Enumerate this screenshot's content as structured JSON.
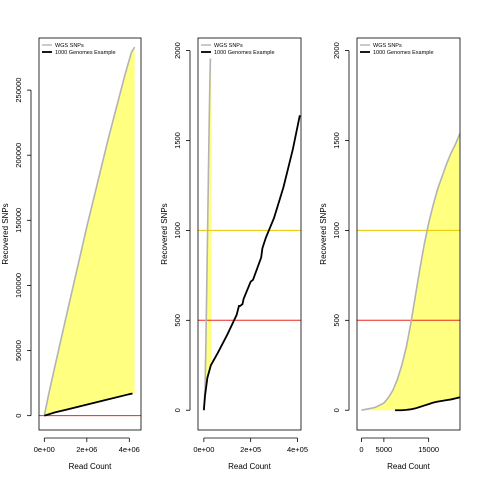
{
  "chart_data": [
    {
      "type": "area",
      "xlabel": "Read Count",
      "ylabel": "Recovered SNPs",
      "xlim": [
        -250000,
        4550000
      ],
      "ylim": [
        -11000,
        290000
      ],
      "x_ticks": [
        {
          "v": 0,
          "label": "0e+00"
        },
        {
          "v": 2000000,
          "label": "2e+06"
        },
        {
          "v": 4000000,
          "label": "4e+06"
        }
      ],
      "y_ticks": [
        {
          "v": 0,
          "label": "0"
        },
        {
          "v": 50000,
          "label": "50000"
        },
        {
          "v": 100000,
          "label": "100000"
        },
        {
          "v": 150000,
          "label": "150000"
        },
        {
          "v": 200000,
          "label": "200000"
        },
        {
          "v": 250000,
          "label": "250000"
        }
      ],
      "legend": {
        "position": "top-left",
        "entries": [
          "WGS SNPs",
          "1000 Genomes Example"
        ]
      },
      "hlines": [
        {
          "y": 0,
          "color": "#e8281e"
        }
      ],
      "series": [
        {
          "name": "WGS SNPs",
          "color": "#b3b3b3",
          "fill": "#ffff80",
          "x": [
            0,
            200000,
            500000,
            1000000,
            2000000,
            3000000,
            3800000,
            4100000,
            4250000
          ],
          "y": [
            0,
            16000,
            38000,
            74000,
            145000,
            212000,
            262000,
            279000,
            283000
          ]
        },
        {
          "name": "1000 Genomes Example",
          "color": "#000000",
          "x": [
            0,
            500000,
            1000000,
            2000000,
            3000000,
            4000000,
            4150000
          ],
          "y": [
            0,
            2500,
            4500,
            8500,
            12500,
            16500,
            17000
          ]
        }
      ]
    },
    {
      "type": "area",
      "xlabel": "",
      "ylabel": "Recovered SNPs",
      "xlim": [
        -25000,
        415000
      ],
      "ylim": [
        -110,
        2070
      ],
      "x_ticks": [
        {
          "v": 0,
          "label": "0e+00"
        },
        {
          "v": 200000,
          "label": "2e+05"
        },
        {
          "v": 400000,
          "label": "4e+05"
        }
      ],
      "y_ticks": [
        {
          "v": 0,
          "label": "0"
        },
        {
          "v": 500,
          "label": "500"
        },
        {
          "v": 1000,
          "label": "1000"
        },
        {
          "v": 1500,
          "label": "1500"
        },
        {
          "v": 2000,
          "label": "2000"
        }
      ],
      "legend": {
        "position": "top-left",
        "entries": [
          "WGS SNPs",
          "1000 Genomes Example"
        ]
      },
      "hlines": [
        {
          "y": 500,
          "color": "#e8281e"
        },
        {
          "y": 1000,
          "color": "#e6c800"
        }
      ],
      "series": [
        {
          "name": "WGS SNPs",
          "color": "#b3b3b3",
          "fill": "#ffff80",
          "x": [
            0,
            5000,
            8000,
            12000,
            16000,
            21000,
            26000,
            30000,
            32000
          ],
          "y": [
            0,
            120,
            320,
            650,
            1000,
            1450,
            1850,
            2070,
            2200
          ]
        },
        {
          "name": "1000 Genomes Example",
          "color": "#000000",
          "x": [
            0,
            5000,
            15000,
            30000,
            60000,
            100000,
            120000,
            140000,
            150000,
            155000,
            165000,
            170000,
            200000,
            210000,
            245000,
            250000,
            265000,
            300000,
            340000,
            380000,
            410000
          ],
          "y": [
            0,
            80,
            180,
            250,
            320,
            420,
            475,
            530,
            580,
            580,
            590,
            620,
            715,
            725,
            850,
            900,
            960,
            1070,
            1240,
            1450,
            1640
          ]
        }
      ]
    },
    {
      "type": "area",
      "xlabel": "",
      "ylabel": "Recovered SNPs",
      "xlim": [
        -1000,
        22000
      ],
      "ylim": [
        -110,
        2070
      ],
      "x_ticks": [
        {
          "v": 0,
          "label": "0"
        },
        {
          "v": 5000,
          "label": "5000"
        },
        {
          "v": 15000,
          "label": "15000"
        }
      ],
      "y_ticks": [
        {
          "v": 0,
          "label": "0"
        },
        {
          "v": 500,
          "label": "500"
        },
        {
          "v": 1000,
          "label": "1000"
        },
        {
          "v": 1500,
          "label": "1500"
        },
        {
          "v": 2000,
          "label": "2000"
        }
      ],
      "legend": {
        "position": "top-left",
        "entries": [
          "WGS SNPs",
          "1000 Genomes Example"
        ]
      },
      "hlines": [
        {
          "y": 500,
          "color": "#e8281e"
        },
        {
          "y": 1000,
          "color": "#e6c800"
        }
      ],
      "series": [
        {
          "name": "WGS SNPs",
          "color": "#b3b3b3",
          "fill": "#ffff80",
          "x": [
            0,
            3000,
            5000,
            6000,
            7000,
            8000,
            9000,
            10000,
            11000,
            12000,
            13000,
            14000,
            15000,
            16000,
            17000,
            18000,
            19000,
            20000,
            21000,
            22000
          ],
          "y": [
            0,
            15,
            40,
            70,
            110,
            170,
            250,
            350,
            480,
            630,
            780,
            920,
            1040,
            1140,
            1230,
            1300,
            1370,
            1430,
            1480,
            1540
          ]
        },
        {
          "name": "1000 Genomes Example",
          "color": "#000000",
          "x": [
            7500,
            9000,
            10000,
            11000,
            12000,
            13000,
            14000,
            15000,
            16000,
            17000,
            18000,
            19000,
            20000,
            21000,
            22000
          ],
          "y": [
            0,
            0,
            2,
            5,
            10,
            18,
            26,
            34,
            42,
            48,
            52,
            56,
            60,
            66,
            72
          ]
        }
      ]
    }
  ]
}
